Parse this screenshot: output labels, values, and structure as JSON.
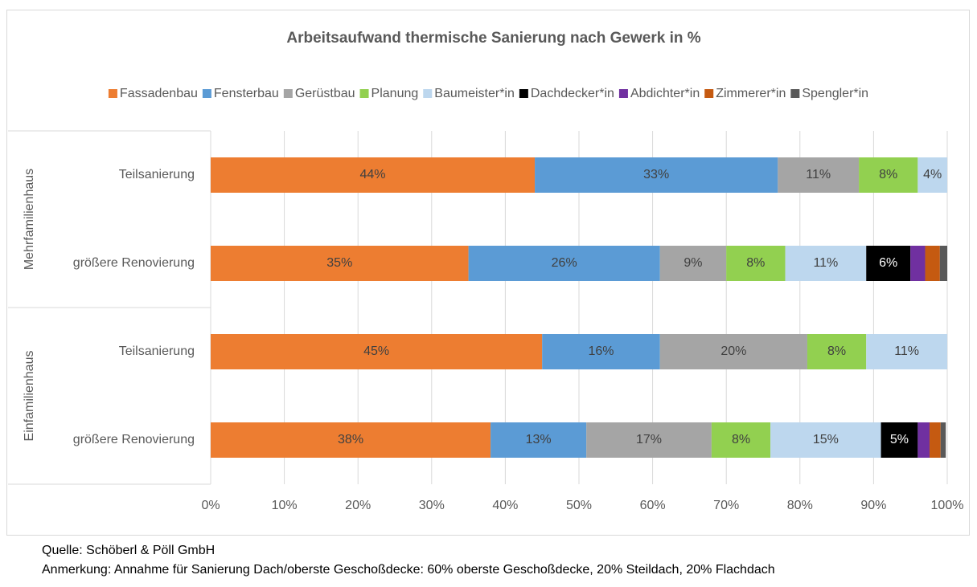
{
  "chart_data": {
    "type": "stacked_barh",
    "title": "Arbeitsaufwand thermische Sanierung nach Gewerk in %",
    "category_groups": [
      {
        "name": "Mehrfamilienhaus",
        "categories": [
          "Teilsanierung",
          "größere Renovierung"
        ]
      },
      {
        "name": "Einfamilienhaus",
        "categories": [
          "Teilsanierung",
          "größere Renovierung"
        ]
      }
    ],
    "series": [
      {
        "name": "Fassadenbau",
        "color": "#ed7d31",
        "values": [
          44,
          35,
          45,
          38
        ],
        "value_labels": [
          "44%",
          "35%",
          "45%",
          "38%"
        ]
      },
      {
        "name": "Fensterbau",
        "color": "#5b9bd5",
        "values": [
          33,
          26,
          16,
          13
        ],
        "value_labels": [
          "33%",
          "26%",
          "16%",
          "13%"
        ]
      },
      {
        "name": "Gerüstbau",
        "color": "#a5a5a5",
        "values": [
          11,
          9,
          20,
          17
        ],
        "value_labels": [
          "11%",
          "9%",
          "20%",
          "17%"
        ]
      },
      {
        "name": "Planung",
        "color": "#92d050",
        "values": [
          8,
          8,
          8,
          8
        ],
        "value_labels": [
          "8%",
          "8%",
          "8%",
          "8%"
        ]
      },
      {
        "name": "Baumeister*in",
        "color": "#bdd7ee",
        "values": [
          4,
          11,
          11,
          15
        ],
        "value_labels": [
          "4%",
          "11%",
          "11%",
          "15%"
        ]
      },
      {
        "name": "Dachdecker*in",
        "color": "#000000",
        "values": [
          null,
          6,
          null,
          5
        ],
        "value_labels": [
          null,
          "6%",
          null,
          "5%"
        ]
      },
      {
        "name": "Abdichter*in",
        "color": "#7030a0",
        "values": [
          null,
          2,
          null,
          1.6
        ],
        "value_labels": [
          null,
          null,
          null,
          null
        ]
      },
      {
        "name": "Zimmerer*in",
        "color": "#c55a11",
        "values": [
          null,
          2,
          null,
          1.5
        ],
        "value_labels": [
          null,
          null,
          null,
          null
        ]
      },
      {
        "name": "Spengler*in",
        "color": "#595959",
        "values": [
          null,
          1,
          null,
          0.7
        ],
        "value_labels": [
          null,
          null,
          null,
          null
        ]
      }
    ],
    "xlim": [
      0,
      100
    ],
    "xticks": [
      {
        "value": 0,
        "label": "0%"
      },
      {
        "value": 10,
        "label": "10%"
      },
      {
        "value": 20,
        "label": "20%"
      },
      {
        "value": 30,
        "label": "30%"
      },
      {
        "value": 40,
        "label": "40%"
      },
      {
        "value": 50,
        "label": "50%"
      },
      {
        "value": 60,
        "label": "60%"
      },
      {
        "value": 70,
        "label": "70%"
      },
      {
        "value": 80,
        "label": "80%"
      },
      {
        "value": 90,
        "label": "90%"
      },
      {
        "value": 100,
        "label": "100%"
      }
    ],
    "grid": true,
    "legend": "top",
    "notes": [
      "Quelle: Schöberl & Pöll GmbH",
      "Anmerkung: Annahme für Sanierung Dach/oberste Geschoßdecke: 60% oberste Geschoßdecke, 20% Steildach, 20% Flachdach"
    ]
  }
}
